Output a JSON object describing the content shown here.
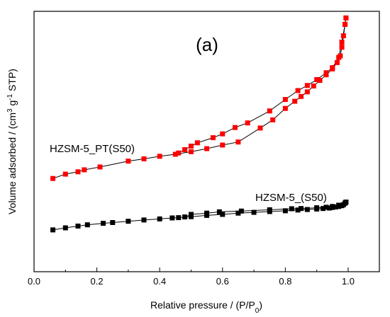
{
  "chart_data": {
    "type": "scatter",
    "panel_label": "(a)",
    "xlabel_main": "Relative pressure / (P/P",
    "xlabel_sub": "0",
    "xlabel_close": ")",
    "ylabel_a": "Volume adsorbed / (cm",
    "ylabel_sup1": "3",
    "ylabel_b": " g",
    "ylabel_sup2": "-1",
    "ylabel_c": " STP)",
    "xlim": [
      0.0,
      1.0
    ],
    "xticks": [
      "0.0",
      "0.2",
      "0.4",
      "0.6",
      "0.8",
      "1.0"
    ],
    "y_tick_labels_shown": false,
    "ylim": [
      0,
      100
    ],
    "series": [
      {
        "name": "HZSM-5_PT(S50)",
        "color": "#ff0000",
        "marker": "square",
        "adsorption": {
          "x": [
            0.06,
            0.1,
            0.14,
            0.16,
            0.21,
            0.3,
            0.35,
            0.4,
            0.45,
            0.5,
            0.55,
            0.6,
            0.65,
            0.72,
            0.76,
            0.8,
            0.83,
            0.85,
            0.87,
            0.89,
            0.91,
            0.93,
            0.95,
            0.965,
            0.975,
            0.98,
            0.985,
            0.99,
            0.993
          ],
          "y": [
            35.5,
            37.2,
            38.1,
            38.9,
            40.0,
            42.3,
            43.2,
            44.2,
            45.0,
            46.0,
            47.2,
            48.6,
            49.8,
            55.3,
            58.5,
            63.0,
            65.8,
            67.7,
            69.5,
            71.8,
            74.0,
            76.2,
            78.5,
            81.0,
            83.6,
            87.0,
            91.5,
            96.0,
            98.5
          ]
        },
        "desorption": {
          "x": [
            0.993,
            0.99,
            0.98,
            0.97,
            0.95,
            0.93,
            0.9,
            0.87,
            0.84,
            0.8,
            0.75,
            0.68,
            0.64,
            0.6,
            0.57,
            0.52,
            0.5,
            0.48,
            0.46
          ],
          "y": [
            98.5,
            96.0,
            89.0,
            83.0,
            79.0,
            77.0,
            74.3,
            72.0,
            70.0,
            66.5,
            62.0,
            57.3,
            55.5,
            53.0,
            51.5,
            49.5,
            48.2,
            46.8,
            45.5
          ]
        }
      },
      {
        "name": "HZSM-5_(S50)",
        "color": "#000000",
        "marker": "square",
        "adsorption": {
          "x": [
            0.06,
            0.1,
            0.14,
            0.17,
            0.22,
            0.25,
            0.3,
            0.35,
            0.4,
            0.44,
            0.46,
            0.5,
            0.55,
            0.6,
            0.65,
            0.7,
            0.75,
            0.8,
            0.84,
            0.87,
            0.9,
            0.92,
            0.94,
            0.95,
            0.96,
            0.97,
            0.98,
            0.985,
            0.99,
            0.993
          ],
          "y": [
            15.3,
            16.1,
            16.8,
            17.3,
            17.9,
            18.2,
            18.7,
            19.2,
            19.6,
            20.0,
            20.1,
            20.5,
            21.0,
            21.4,
            21.9,
            22.2,
            22.5,
            22.8,
            23.1,
            23.3,
            23.5,
            23.7,
            23.9,
            24.1,
            24.3,
            24.5,
            24.8,
            25.2,
            25.8,
            26.2
          ]
        },
        "desorption": {
          "x": [
            0.993,
            0.99,
            0.97,
            0.95,
            0.93,
            0.9,
            0.85,
            0.82,
            0.75,
            0.66,
            0.59,
            0.55,
            0.5,
            0.48
          ],
          "y": [
            26.2,
            25.8,
            25.0,
            24.5,
            24.2,
            24.0,
            23.7,
            23.6,
            23.2,
            22.7,
            22.4,
            21.9,
            21.4,
            20.4
          ]
        }
      }
    ],
    "annotations": [
      {
        "series": 0,
        "text": "HZSM-5_PT(S50)"
      },
      {
        "series": 1,
        "text": "HZSM-5_(S50)"
      }
    ]
  }
}
